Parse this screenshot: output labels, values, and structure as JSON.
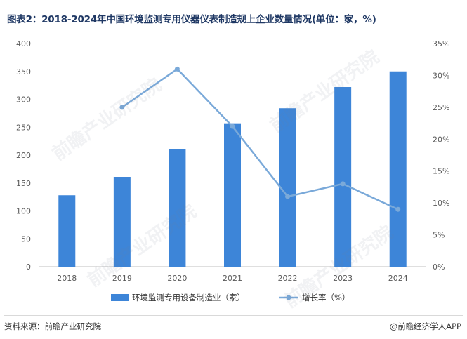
{
  "page": {
    "title": "图表2：2018-2024年中国环境监测专用仪器仪表制造规上企业数量情况(单位：家，%)",
    "source": "资料来源：前瞻产业研究院",
    "brand": "@前瞻经济学人APP",
    "watermark": "前瞻产业研究院"
  },
  "colors": {
    "bar": "#3d85d8",
    "line": "#7aa9d9",
    "axis_text": "#595959",
    "axis_line": "#bfbfbf"
  },
  "chart_data": {
    "type": "bar",
    "categories": [
      "2018",
      "2019",
      "2020",
      "2021",
      "2022",
      "2023",
      "2024"
    ],
    "series": [
      {
        "name": "环境监测专用设备制造业（家）",
        "type": "bar",
        "axis": "left",
        "values": [
          128,
          161,
          211,
          257,
          284,
          322,
          350
        ]
      },
      {
        "name": "增长率（%）",
        "type": "line",
        "axis": "right",
        "values": [
          null,
          25.0,
          31.0,
          22.0,
          11.0,
          13.0,
          9.0
        ]
      }
    ],
    "left_axis": {
      "ylim": [
        0,
        400
      ],
      "ticks": [
        "0",
        "50",
        "100",
        "150",
        "200",
        "250",
        "300",
        "350",
        "400"
      ]
    },
    "right_axis": {
      "ylim": [
        0,
        35
      ],
      "ticks": [
        "0%",
        "5%",
        "10%",
        "15%",
        "20%",
        "25%",
        "30%",
        "35%"
      ]
    },
    "legend_position": "bottom",
    "grid": false
  }
}
